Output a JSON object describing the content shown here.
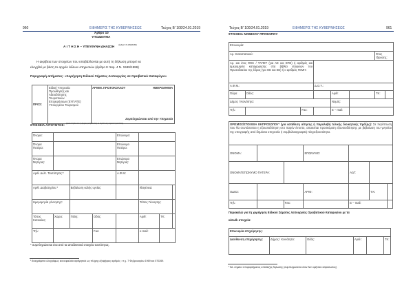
{
  "left_page": {
    "header": {
      "page_number": "960",
      "gazette": "ΕΦΗΜΕΡΙΣ ΤΗΣ ΚΥΒΕΡΝΗΣΕΩΣ",
      "issue": "Τεύχος Β' 100/24.01.2019"
    },
    "article": "Άρθρο 10",
    "template_label": "ΥΠΟΔΕΙΓΜΑ",
    "form_title": "Α Ι Τ Η Σ Η – ΥΠΕΥΘΥΝΗ ΔΗΛΩΣΗ",
    "form_title_ref": "(άρθρο 8 Ν.1599/1986)",
    "intro_line1": "Η ακρίβεια των στοιχείων που υποβάλλονται με αυτή τη δήλωση μπορεί να",
    "intro_line2": "ελεγχθεί με βάση το αρχείο άλλων υπηρεσιών (άρθρο 8 παρ. 4 Ν. 1599/1986)",
    "request_description": "Περιγραφή αιτήματος: «Χορήγηση Ειδικού Σήματος Λειτουργίας σε Ορειβατικό Καταφύγιο»",
    "recipient_table": {
      "to_label": "ΠΡΟΣ:",
      "to_value": [
        "Ειδική Υπηρεσία",
        "Προώθησης και",
        "Αδειοδότησης",
        "Τουριστικών",
        "Επιχειρήσεων (ΕΥΠΑΤΕ)",
        "Υπουργείου Τουρισμού"
      ],
      "protocol_label": "ΑΡΙΘΜ. ΠΡΩΤΟΚΟΛΛΟΥ",
      "date_label": "ΗΜΕΡΟΜΗΝΙΑ",
      "filled_by": "Συμπληρώνεται από την Υπηρεσία"
    },
    "applicant_heading": "ΣΤΟΙΧΕΙΑ ΑΙΤΟΥΝΤΟΣ:",
    "applicant_heading_note": "(φυσικό πρόσωπο ή νόμιμος εκπρόσωπος σε περίπτωση νομικού προσώπου)",
    "applicant_fields": {
      "first_name": "Όνομα:",
      "last_name": "Επώνυμο:",
      "father_name": "Όνομα Πατέρα:",
      "father_surname": "Επώνυμο Πατέρα:",
      "mother_name": "Όνομα Μητέρας:",
      "mother_surname": "Επώνυμο Μητέρας:",
      "id_number": "Αριθ. Δελτ. Ταυτότητας:*",
      "tax_id": "Α.Φ.Μ:",
      "passport": "Αριθ. Διαβατηρίου:*",
      "health_cert": "Βεβαίωση καλής υγείας:",
      "nationality": "Ιθαγένεια:",
      "birth_date": "Ημερομηνία γέννησης¹:",
      "birth_place": "Τόπος Γέννησης:",
      "residence": "Τόπος Κατοικίας:",
      "country": "Χώρα:",
      "city": "Πόλη:",
      "street": "Οδός:",
      "number": "Αριθ:",
      "postcode": "ΤΚ:",
      "phone": "Τηλ:",
      "fax": "Fax:",
      "email": "e-mail:"
    },
    "applicant_note": "* συμπληρώνεται ένα από τα αποδεικτικά στοιχεία ταυτότητας.",
    "footnote": "¹ Αναγράφεται ολογράφως και κεφαλαία αριθμητικά ως πλήρης εξαψήφιος αριθμός : π.χ. 7 Φεβρουαρίου 1969 και 070269."
  },
  "right_page": {
    "header": {
      "page_number": "961",
      "gazette": "ΕΦΗΜΕΡΙΣ ΤΗΣ ΚΥΒΕΡΝΗΣΕΩΣ",
      "issue": "Τεύχος Β' 100/24.01.2019"
    },
    "legal_entity_heading": "ΣΤΟΙΧΕΙΑ ΝΟΜΙΚΟΥ ΠΡΟΣΩΠΟΥ",
    "legal_fields": {
      "name": "Επωνυμία:",
      "statute_no": "Αρ. Καταστατικού:",
      "founding_year": "Έτος Ίδρυσης:",
      "registration": "Αρ. και έτος ΦΕΚ / ΤΑΠΕΤ (για ΑΕ και ΕΠΕ) ή αριθμός και ημερομηνία καταχώρησης στα βιβλία εταιρειών του Πρωτοδικείου της έδρας (για ΟΕ και ΕΕ) ή ο αριθμός ΓΕΜΗ:",
      "tax_id": "Α.Φ.Μ.:",
      "tax_office": "Δ.Ο.Υ.:",
      "seat": "Έδρα",
      "street": "Οδός:",
      "number": "Αριθ:",
      "postcode": "ΤΚ:",
      "municipality": "Δήμος / Κοινότητα:",
      "prefecture": "Νομός:",
      "phone": "Τηλ:",
      "fax": "Fax:",
      "email": "E – mail:"
    },
    "representative_intro_bold": "ΟΡΙΣΜΟΣ/ΣΤΟΙΧΕΙΑ ΕΚΠΡΟΣΩΠΟΥ² (για κατάθεση αίτησης ή παραλαβή τελικής διοικητικής πράξης):",
    "representative_intro_text": "Σε περίπτωση που θα συντάσσεται η εξουσιοδότηση στο παρόν έντυπο, απαιτείται προσκόμιση εξουσιοδότησης με βεβαίωση του γνησίου της υπογραφής από δημόσια υπηρεσία ή συμβολαιογραφική πληρεξουσιότητα.",
    "representative_fields": {
      "name": "ΟΝΟΜΑ:",
      "surname": "ΕΠΩΝΥΜΟ:",
      "father": "ΟΝΟΜΑΤΕΠΩΝΥΜΟ ΠΑΤΕΡΑ:",
      "id": "ΑΔΤ:",
      "street": "ΟΔΟΣ:",
      "number": "ΑΡΙΘ:",
      "postcode": "Τ.Κ:",
      "phone": "Τηλ:",
      "fax": "Fax:",
      "email": "E – mail:"
    },
    "request_line1": "Παρακαλώ για τη χορήγηση Ειδικού Σήματος Λειτουργίας Ορειβατικού Καταφυγίου με τα",
    "request_line2": "κάτωθι στοιχεία:",
    "business_fields": {
      "name": "Επωνυμία επιχείρησης:",
      "address": "Διεύθυνση επιχείρησης:",
      "municipality": "Δήμος / Κοινότητα:",
      "street": "Οδός:",
      "number": "Αριθ.:",
      "postcode": "ΤΚ:"
    },
    "footnote": "² Βλ. σημείο 1 παραρτήματος υπόδειξης δήλωσης (συμπληρώνεται όταν δεν ορίζεται εκπρόσωπος)"
  }
}
